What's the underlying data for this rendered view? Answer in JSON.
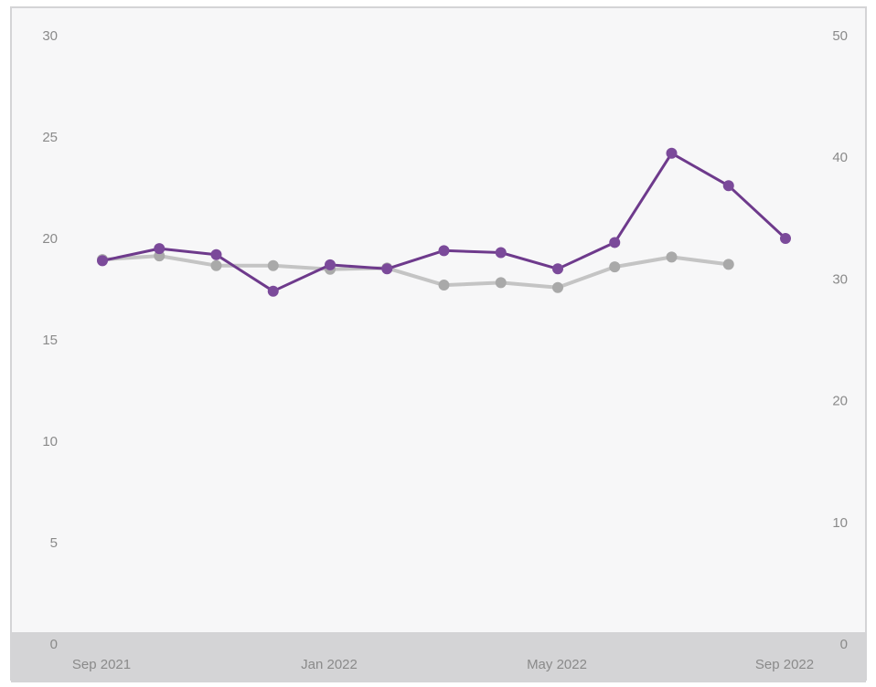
{
  "colors": {
    "background": "#f7f7f8",
    "frame": "#d4d4d6",
    "axis_band": "#d4d4d6",
    "tick_text": "#8a8a8a",
    "series_primary": "#6e3a8c",
    "series_primary_marker": "#7b4a9a",
    "series_secondary": "#c4c4c4",
    "series_secondary_marker": "#a9a9a9"
  },
  "chart_data": {
    "type": "line",
    "title": "",
    "xlabel": "",
    "ylabel": "",
    "x": [
      "2021-09",
      "2021-10",
      "2021-11",
      "2021-12",
      "2022-01",
      "2022-02",
      "2022-03",
      "2022-04",
      "2022-05",
      "2022-06",
      "2022-07",
      "2022-08",
      "2022-09"
    ],
    "x_ticks": [
      {
        "x": "2021-09",
        "label": "Sep 2021"
      },
      {
        "x": "2022-01",
        "label": "Jan 2022"
      },
      {
        "x": "2022-05",
        "label": "May 2022"
      },
      {
        "x": "2022-09",
        "label": "Sep 2022"
      }
    ],
    "y_left": {
      "min": 0,
      "max": 30,
      "ticks": [
        0,
        5,
        10,
        15,
        20,
        25,
        30
      ]
    },
    "y_right": {
      "min": 0,
      "max": 50,
      "ticks": [
        0,
        10,
        20,
        30,
        40,
        50
      ]
    },
    "grid": false,
    "series": [
      {
        "axis": "left",
        "color": "#6e3a8c",
        "values": [
          18.9,
          19.5,
          19.2,
          17.4,
          18.7,
          18.5,
          19.4,
          19.3,
          18.5,
          19.8,
          24.2,
          22.6,
          20.0
        ]
      },
      {
        "axis": "right",
        "color": "#c4c4c4",
        "values": [
          31.6,
          31.9,
          31.1,
          31.1,
          30.8,
          30.9,
          29.5,
          29.7,
          29.3,
          31.0,
          31.8,
          31.2,
          null
        ]
      }
    ]
  }
}
